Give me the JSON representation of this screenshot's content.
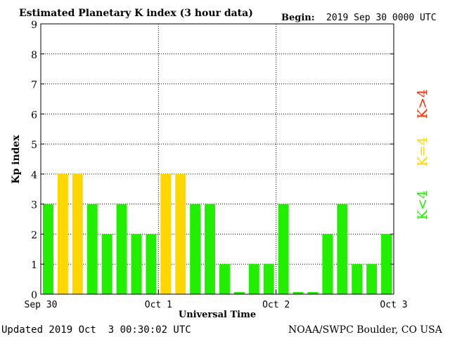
{
  "header": {
    "title": "Estimated Planetary K index (3 hour data)",
    "begin_label": "Begin:",
    "begin_value": "2019 Sep 30 0000 UTC"
  },
  "footer": {
    "updated": "Updated 2019 Oct  3 00:30:02 UTC",
    "source": "NOAA/SWPC Boulder, CO USA"
  },
  "legend": {
    "high": "K>4",
    "equal": "K=4",
    "low": "K<4"
  },
  "colors": {
    "low": "#22ee00",
    "equal": "#ffd700",
    "high": "#ff2a00"
  },
  "chart_data": {
    "type": "bar",
    "title": "Estimated Planetary K index (3 hour data)",
    "xlabel": "Universal Time",
    "ylabel": "Kp index",
    "ylim": [
      0,
      9
    ],
    "yticks": [
      "0",
      "1",
      "2",
      "3",
      "4",
      "5",
      "6",
      "7",
      "8",
      "9"
    ],
    "x_ticks": [
      "Sep 30",
      "Oct 1",
      "Oct 2",
      "Oct 3"
    ],
    "interval_hours": 3,
    "grid": true,
    "values": [
      3,
      4,
      4,
      3,
      2,
      3,
      2,
      2,
      4,
      4,
      3,
      3,
      1,
      0.07,
      1,
      1,
      3,
      0.07,
      0.07,
      2,
      3,
      1,
      1,
      2
    ]
  }
}
